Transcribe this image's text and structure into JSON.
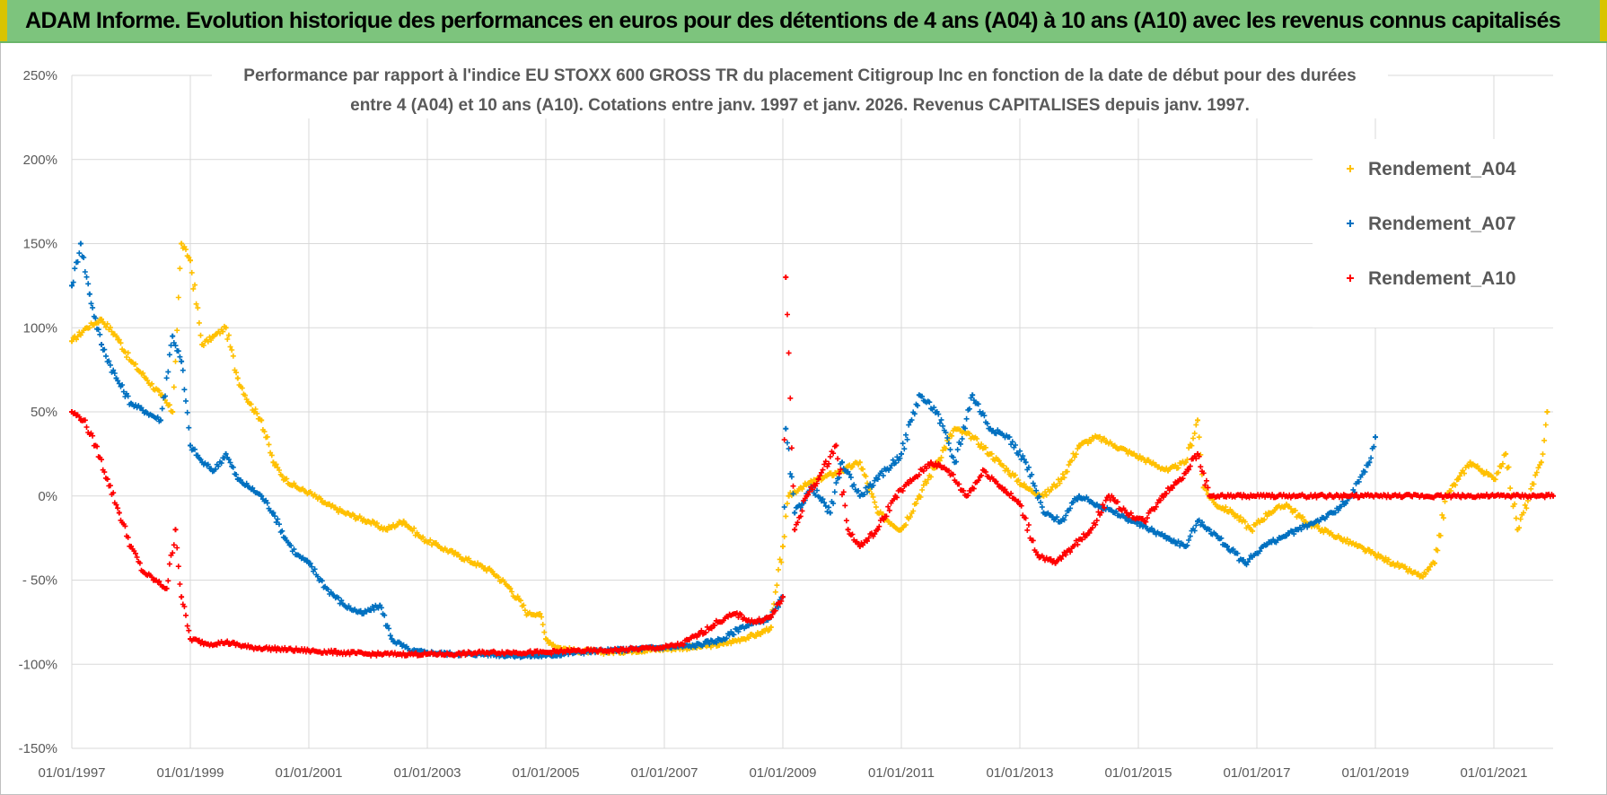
{
  "banner": {
    "title": "ADAM Informe. Evolution historique des performances en euros pour des détentions de 4 ans (A04) à 10 ans (A10) avec les revenus connus capitalisés"
  },
  "chart_data": {
    "type": "scatter",
    "title_line1": "Performance par rapport à l'indice EU STOXX 600 GROSS TR  du placement Citigroup Inc en fonction de la date de début pour des durées",
    "title_line2": "entre 4 (A04) et 10 ans (A10).  Cotations entre janv. 1997 et janv. 2026. Revenus CAPITALISES  depuis janv. 1997.",
    "xlabel": "",
    "ylabel": "",
    "xlim": [
      1997.0,
      2022.0
    ],
    "ylim": [
      -150,
      250
    ],
    "y_ticks": [
      250,
      200,
      150,
      100,
      50,
      0,
      -50,
      -100,
      -150
    ],
    "y_tick_labels": [
      "250%",
      "200%",
      "150%",
      "100%",
      "50%",
      "0%",
      "- 50%",
      "-100%",
      "-150%"
    ],
    "x_ticks": [
      1997,
      1999,
      2001,
      2003,
      2005,
      2007,
      2009,
      2011,
      2013,
      2015,
      2017,
      2019,
      2021
    ],
    "x_tick_labels": [
      "01/01/1997",
      "01/01/1999",
      "01/01/2001",
      "01/01/2003",
      "01/01/2005",
      "01/01/2007",
      "01/01/2009",
      "01/01/2011",
      "01/01/2013",
      "01/01/2015",
      "01/01/2017",
      "01/01/2019",
      "01/01/2021"
    ],
    "grid": true,
    "legend_position": "top-right",
    "marker": "+",
    "series": [
      {
        "name": "Rendement_A04",
        "color": "#FFC000",
        "x": [
          1997.0,
          1997.25,
          1997.5,
          1997.75,
          1998.0,
          1998.25,
          1998.5,
          1998.7,
          1998.85,
          1999.0,
          1999.2,
          1999.4,
          1999.6,
          1999.8,
          2000.0,
          2000.2,
          2000.4,
          2000.6,
          2000.8,
          2001.0,
          2001.3,
          2001.6,
          2002.0,
          2002.3,
          2002.6,
          2002.9,
          2003.2,
          2003.5,
          2003.8,
          2004.1,
          2004.4,
          2004.7,
          2004.9,
          2005.0,
          2005.2,
          2005.5,
          2006.0,
          2006.5,
          2007.0,
          2007.5,
          2008.0,
          2008.3,
          2008.6,
          2008.8,
          2009.0,
          2009.1,
          2009.3,
          2009.6,
          2010.0,
          2010.3,
          2010.6,
          2011.0,
          2011.3,
          2011.6,
          2011.9,
          2012.2,
          2012.5,
          2012.8,
          2013.1,
          2013.4,
          2013.7,
          2014.0,
          2014.3,
          2014.6,
          2014.9,
          2015.2,
          2015.5,
          2015.8,
          2016.0,
          2016.1,
          2016.3,
          2016.6,
          2016.9,
          2017.2,
          2017.5,
          2017.8,
          2018.1,
          2018.4,
          2018.7,
          2019.0,
          2019.3,
          2019.6,
          2019.8,
          2020.0,
          2020.2,
          2020.4,
          2020.6,
          2020.8,
          2021.0,
          2021.2,
          2021.4,
          2021.6,
          2021.8,
          2021.9
        ],
        "values": [
          92,
          100,
          105,
          95,
          80,
          70,
          60,
          50,
          150,
          140,
          90,
          95,
          100,
          70,
          55,
          45,
          20,
          10,
          5,
          2,
          -5,
          -10,
          -15,
          -20,
          -15,
          -25,
          -30,
          -35,
          -40,
          -45,
          -55,
          -70,
          -70,
          -85,
          -90,
          -92,
          -93,
          -92,
          -91,
          -90,
          -88,
          -85,
          -82,
          -78,
          -30,
          0,
          5,
          10,
          15,
          20,
          -10,
          -20,
          0,
          20,
          40,
          35,
          25,
          15,
          5,
          0,
          10,
          30,
          35,
          30,
          25,
          20,
          15,
          20,
          45,
          5,
          -5,
          -10,
          -20,
          -10,
          -5,
          -15,
          -20,
          -25,
          -30,
          -35,
          -40,
          -45,
          -48,
          -40,
          0,
          10,
          20,
          15,
          10,
          25,
          -20,
          0,
          20,
          50
        ]
      },
      {
        "name": "Rendement_A07",
        "color": "#0070C0",
        "x": [
          1997.0,
          1997.15,
          1997.3,
          1997.5,
          1997.75,
          1998.0,
          1998.25,
          1998.5,
          1998.7,
          1998.85,
          1999.0,
          1999.2,
          1999.4,
          1999.6,
          1999.8,
          2000.0,
          2000.2,
          2000.4,
          2000.6,
          2000.8,
          2001.0,
          2001.3,
          2001.6,
          2001.9,
          2002.2,
          2002.4,
          2002.7,
          2003.0,
          2003.5,
          2004.0,
          2004.5,
          2005.0,
          2005.5,
          2006.0,
          2006.5,
          2007.0,
          2007.5,
          2008.0,
          2008.3,
          2008.6,
          2008.8,
          2009.0,
          2009.05,
          2009.2,
          2009.5,
          2009.8,
          2010.0,
          2010.3,
          2010.6,
          2011.0,
          2011.3,
          2011.6,
          2011.9,
          2012.2,
          2012.5,
          2012.8,
          2013.1,
          2013.4,
          2013.7,
          2014.0,
          2014.3,
          2014.6,
          2014.9,
          2015.2,
          2015.5,
          2015.8,
          2016.0,
          2016.2,
          2016.5,
          2016.8,
          2017.1,
          2017.4,
          2017.7,
          2018.0,
          2018.3,
          2018.6,
          2018.9,
          2019.0
        ],
        "values": [
          125,
          150,
          120,
          90,
          70,
          55,
          50,
          45,
          95,
          80,
          30,
          20,
          15,
          25,
          10,
          5,
          0,
          -10,
          -25,
          -35,
          -40,
          -55,
          -65,
          -70,
          -65,
          -85,
          -92,
          -93,
          -94,
          -94,
          -95,
          -95,
          -93,
          -92,
          -91,
          -90,
          -89,
          -85,
          -78,
          -75,
          -72,
          -60,
          40,
          -10,
          5,
          -10,
          20,
          0,
          10,
          25,
          60,
          50,
          20,
          60,
          40,
          35,
          20,
          -10,
          -15,
          0,
          -5,
          -10,
          -15,
          -20,
          -25,
          -30,
          -15,
          -20,
          -30,
          -40,
          -30,
          -25,
          -20,
          -15,
          -10,
          0,
          20,
          35
        ]
      },
      {
        "name": "Rendement_A10",
        "color": "#FF0000",
        "x": [
          1997.0,
          1997.2,
          1997.4,
          1997.6,
          1997.8,
          1998.0,
          1998.2,
          1998.4,
          1998.6,
          1998.75,
          1998.85,
          1999.0,
          1999.3,
          1999.6,
          2000.0,
          2000.5,
          2001.0,
          2001.5,
          2002.0,
          2002.5,
          2003.0,
          2003.5,
          2004.0,
          2004.5,
          2005.0,
          2005.5,
          2006.0,
          2006.5,
          2007.0,
          2007.3,
          2007.6,
          2007.9,
          2008.2,
          2008.5,
          2008.8,
          2009.0,
          2009.05,
          2009.2,
          2009.4,
          2009.6,
          2009.9,
          2010.1,
          2010.3,
          2010.6,
          2010.9,
          2011.2,
          2011.5,
          2011.8,
          2012.1,
          2012.4,
          2012.7,
          2013.0,
          2013.3,
          2013.6,
          2013.9,
          2014.2,
          2014.5,
          2014.8,
          2015.1,
          2015.4,
          2015.7,
          2016.0,
          2016.2,
          2016.8,
          2017.5,
          2018.2,
          2018.9,
          2019.6,
          2020.3,
          2021.0,
          2021.6,
          2022.0
        ],
        "values": [
          50,
          45,
          30,
          10,
          -10,
          -30,
          -45,
          -50,
          -55,
          -20,
          -60,
          -85,
          -88,
          -87,
          -90,
          -91,
          -92,
          -93,
          -94,
          -94,
          -94,
          -94,
          -93,
          -93,
          -93,
          -92,
          -92,
          -91,
          -90,
          -88,
          -82,
          -75,
          -70,
          -75,
          -72,
          -60,
          130,
          -20,
          0,
          10,
          30,
          -20,
          -30,
          -20,
          0,
          10,
          20,
          15,
          0,
          15,
          5,
          -5,
          -35,
          -40,
          -30,
          -20,
          0,
          -10,
          -15,
          0,
          10,
          25,
          0,
          0,
          0,
          0,
          0,
          0,
          0,
          0,
          0,
          0
        ]
      }
    ]
  }
}
